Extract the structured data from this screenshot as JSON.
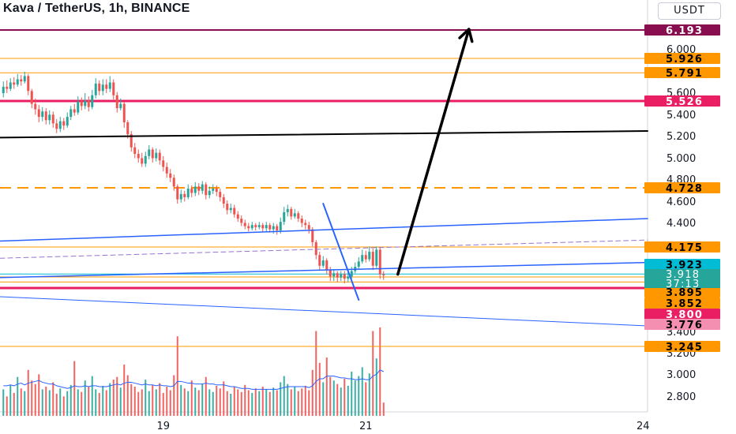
{
  "header": {
    "title": "Kava / TetherUS, 1h, BINANCE",
    "currency": "USDT"
  },
  "colors": {
    "up": "#26a69a",
    "down": "#ef5350",
    "volume_ma": "#2962ff",
    "orange": "#ff9800",
    "red": "#e91e63",
    "maroon": "#880e4f",
    "blue": "#2962ff",
    "black": "#000000",
    "cyan": "#00bcd4",
    "teal": "#26a69a",
    "pink": "#f48fb1"
  },
  "chart_data": {
    "type": "candlestick",
    "y_axis_ticks": [
      "6.000",
      "5.600",
      "5.400",
      "5.200",
      "5.000",
      "4.800",
      "4.600",
      "4.400",
      "3.400",
      "3.200",
      "3.000",
      "2.800"
    ],
    "y_tick_values": [
      6.0,
      5.6,
      5.4,
      5.2,
      5.0,
      4.8,
      4.6,
      4.4,
      3.4,
      3.2,
      3.0,
      2.8
    ],
    "x_axis_ticks": [
      "19",
      "21",
      "24"
    ],
    "x_tick_bars": [
      45,
      102,
      180
    ],
    "y_scale": [
      {
        "price": 6.193,
        "py": 38
      },
      {
        "price": 5.526,
        "py": 128
      },
      {
        "price": 4.728,
        "py": 238
      },
      {
        "price": 4.175,
        "py": 313
      },
      {
        "price": 3.895,
        "py": 351
      },
      {
        "price": 3.8,
        "py": 365
      },
      {
        "price": 2.8,
        "py": 502
      }
    ],
    "candles": [
      [
        5.6,
        5.66,
        5.71,
        5.56
      ],
      [
        5.66,
        5.64,
        5.72,
        5.6
      ],
      [
        5.64,
        5.7,
        5.74,
        5.62
      ],
      [
        5.7,
        5.68,
        5.75,
        5.64
      ],
      [
        5.68,
        5.73,
        5.78,
        5.66
      ],
      [
        5.73,
        5.71,
        5.77,
        5.67
      ],
      [
        5.71,
        5.76,
        5.8,
        5.69
      ],
      [
        5.76,
        5.62,
        5.78,
        5.58
      ],
      [
        5.62,
        5.5,
        5.64,
        5.46
      ],
      [
        5.5,
        5.45,
        5.55,
        5.4
      ],
      [
        5.45,
        5.38,
        5.49,
        5.33
      ],
      [
        5.38,
        5.43,
        5.47,
        5.34
      ],
      [
        5.43,
        5.35,
        5.46,
        5.31
      ],
      [
        5.35,
        5.4,
        5.44,
        5.31
      ],
      [
        5.4,
        5.32,
        5.43,
        5.28
      ],
      [
        5.32,
        5.27,
        5.36,
        5.23
      ],
      [
        5.27,
        5.34,
        5.38,
        5.24
      ],
      [
        5.34,
        5.3,
        5.37,
        5.26
      ],
      [
        5.3,
        5.38,
        5.42,
        5.28
      ],
      [
        5.38,
        5.45,
        5.48,
        5.35
      ],
      [
        5.45,
        5.42,
        5.5,
        5.39
      ],
      [
        5.42,
        5.52,
        5.57,
        5.4
      ],
      [
        5.52,
        5.48,
        5.56,
        5.44
      ],
      [
        5.48,
        5.53,
        5.6,
        5.45
      ],
      [
        5.53,
        5.47,
        5.57,
        5.43
      ],
      [
        5.47,
        5.58,
        5.63,
        5.45
      ],
      [
        5.58,
        5.69,
        5.74,
        5.55
      ],
      [
        5.69,
        5.62,
        5.72,
        5.58
      ],
      [
        5.62,
        5.68,
        5.73,
        5.58
      ],
      [
        5.68,
        5.64,
        5.73,
        5.6
      ],
      [
        5.64,
        5.7,
        5.76,
        5.61
      ],
      [
        5.7,
        5.58,
        5.73,
        5.54
      ],
      [
        5.58,
        5.46,
        5.61,
        5.42
      ],
      [
        5.46,
        5.5,
        5.55,
        5.44
      ],
      [
        5.5,
        5.33,
        5.52,
        5.28
      ],
      [
        5.33,
        5.22,
        5.35,
        5.18
      ],
      [
        5.22,
        5.1,
        5.25,
        5.06
      ],
      [
        5.1,
        5.04,
        5.14,
        5.0
      ],
      [
        5.04,
        5.0,
        5.08,
        4.96
      ],
      [
        5.0,
        4.95,
        5.05,
        4.92
      ],
      [
        4.95,
        5.02,
        5.06,
        4.92
      ],
      [
        5.02,
        5.08,
        5.12,
        4.99
      ],
      [
        5.08,
        5.0,
        5.1,
        4.96
      ],
      [
        5.0,
        5.05,
        5.09,
        4.97
      ],
      [
        5.05,
        4.98,
        5.08,
        4.94
      ],
      [
        4.98,
        4.92,
        5.02,
        4.88
      ],
      [
        4.92,
        4.86,
        4.96,
        4.82
      ],
      [
        4.86,
        4.82,
        4.9,
        4.78
      ],
      [
        4.82,
        4.74,
        4.85,
        4.7
      ],
      [
        4.74,
        4.62,
        4.76,
        4.58
      ],
      [
        4.62,
        4.67,
        4.71,
        4.59
      ],
      [
        4.67,
        4.64,
        4.7,
        4.6
      ],
      [
        4.64,
        4.72,
        4.76,
        4.62
      ],
      [
        4.72,
        4.68,
        4.75,
        4.64
      ],
      [
        4.68,
        4.74,
        4.78,
        4.65
      ],
      [
        4.74,
        4.7,
        4.77,
        4.66
      ],
      [
        4.7,
        4.76,
        4.79,
        4.67
      ],
      [
        4.76,
        4.66,
        4.78,
        4.62
      ],
      [
        4.66,
        4.7,
        4.74,
        4.63
      ],
      [
        4.7,
        4.72,
        4.76,
        4.67
      ],
      [
        4.72,
        4.69,
        4.75,
        4.65
      ],
      [
        4.69,
        4.64,
        4.72,
        4.6
      ],
      [
        4.64,
        4.58,
        4.67,
        4.54
      ],
      [
        4.58,
        4.52,
        4.61,
        4.48
      ],
      [
        4.52,
        4.54,
        4.58,
        4.49
      ],
      [
        4.54,
        4.48,
        4.57,
        4.45
      ],
      [
        4.48,
        4.44,
        4.51,
        4.41
      ],
      [
        4.44,
        4.4,
        4.47,
        4.37
      ],
      [
        4.4,
        4.37,
        4.43,
        4.34
      ],
      [
        4.37,
        4.35,
        4.4,
        4.32
      ],
      [
        4.35,
        4.38,
        4.41,
        4.33
      ],
      [
        4.38,
        4.36,
        4.4,
        4.33
      ],
      [
        4.36,
        4.38,
        4.41,
        4.34
      ],
      [
        4.38,
        4.35,
        4.4,
        4.32
      ],
      [
        4.35,
        4.38,
        4.41,
        4.32
      ],
      [
        4.38,
        4.34,
        4.4,
        4.31
      ],
      [
        4.34,
        4.37,
        4.4,
        4.3
      ],
      [
        4.37,
        4.33,
        4.39,
        4.29
      ],
      [
        4.33,
        4.41,
        4.45,
        4.3
      ],
      [
        4.41,
        4.5,
        4.55,
        4.38
      ],
      [
        4.5,
        4.53,
        4.57,
        4.46
      ],
      [
        4.53,
        4.46,
        4.55,
        4.43
      ],
      [
        4.46,
        4.49,
        4.53,
        4.44
      ],
      [
        4.49,
        4.44,
        4.51,
        4.41
      ],
      [
        4.44,
        4.4,
        4.47,
        4.36
      ],
      [
        4.4,
        4.38,
        4.43,
        4.34
      ],
      [
        4.38,
        4.34,
        4.41,
        4.3
      ],
      [
        4.34,
        4.22,
        4.36,
        4.18
      ],
      [
        4.22,
        4.1,
        4.24,
        4.06
      ],
      [
        4.1,
        4.0,
        4.13,
        3.96
      ],
      [
        4.0,
        4.05,
        4.09,
        3.98
      ],
      [
        4.05,
        3.96,
        4.07,
        3.92
      ],
      [
        3.96,
        3.9,
        3.99,
        3.86
      ],
      [
        3.9,
        3.93,
        3.96,
        3.86
      ],
      [
        3.93,
        3.89,
        3.95,
        3.85
      ],
      [
        3.89,
        3.92,
        3.95,
        3.86
      ],
      [
        3.92,
        3.88,
        3.95,
        3.84
      ],
      [
        3.88,
        3.9,
        3.94,
        3.85
      ],
      [
        3.9,
        3.95,
        3.99,
        3.88
      ],
      [
        3.95,
        3.99,
        4.03,
        3.93
      ],
      [
        3.99,
        4.04,
        4.08,
        3.97
      ],
      [
        4.04,
        4.1,
        4.15,
        4.02
      ],
      [
        4.1,
        4.06,
        4.14,
        4.03
      ],
      [
        4.06,
        4.13,
        4.18,
        4.04
      ],
      [
        4.13,
        4.0,
        4.16,
        3.96
      ],
      [
        4.0,
        4.15,
        4.18,
        3.98
      ],
      [
        4.15,
        3.92,
        4.17,
        3.88
      ],
      [
        3.92,
        3.91,
        3.95,
        3.87
      ]
    ],
    "volumes": [
      0.3,
      0.22,
      0.35,
      0.26,
      0.44,
      0.31,
      0.28,
      0.52,
      0.4,
      0.36,
      0.47,
      0.3,
      0.33,
      0.29,
      0.38,
      0.25,
      0.31,
      0.22,
      0.28,
      0.35,
      0.62,
      0.3,
      0.27,
      0.4,
      0.33,
      0.45,
      0.3,
      0.26,
      0.34,
      0.29,
      0.37,
      0.41,
      0.44,
      0.32,
      0.58,
      0.46,
      0.36,
      0.33,
      0.27,
      0.3,
      0.41,
      0.28,
      0.35,
      0.3,
      0.37,
      0.26,
      0.33,
      0.29,
      0.46,
      0.9,
      0.35,
      0.31,
      0.28,
      0.4,
      0.32,
      0.29,
      0.36,
      0.44,
      0.3,
      0.27,
      0.34,
      0.31,
      0.39,
      0.28,
      0.25,
      0.33,
      0.3,
      0.27,
      0.35,
      0.29,
      0.26,
      0.31,
      0.28,
      0.33,
      0.3,
      0.27,
      0.32,
      0.29,
      0.38,
      0.45,
      0.36,
      0.3,
      0.33,
      0.28,
      0.31,
      0.34,
      0.29,
      0.52,
      0.96,
      0.6,
      0.38,
      0.66,
      0.44,
      0.4,
      0.36,
      0.32,
      0.42,
      0.34,
      0.5,
      0.4,
      0.45,
      0.55,
      0.38,
      0.48,
      0.96,
      0.65,
      1.0,
      0.15
    ],
    "volume_ma": [
      0.34,
      0.34,
      0.35,
      0.34,
      0.36,
      0.37,
      0.35,
      0.37,
      0.38,
      0.39,
      0.4,
      0.38,
      0.37,
      0.36,
      0.36,
      0.34,
      0.33,
      0.32,
      0.31,
      0.32,
      0.34,
      0.33,
      0.33,
      0.34,
      0.33,
      0.34,
      0.34,
      0.33,
      0.33,
      0.33,
      0.34,
      0.35,
      0.36,
      0.35,
      0.37,
      0.38,
      0.38,
      0.37,
      0.36,
      0.35,
      0.36,
      0.35,
      0.35,
      0.34,
      0.35,
      0.34,
      0.34,
      0.33,
      0.34,
      0.39,
      0.39,
      0.38,
      0.37,
      0.37,
      0.36,
      0.36,
      0.36,
      0.37,
      0.36,
      0.36,
      0.35,
      0.35,
      0.35,
      0.34,
      0.33,
      0.33,
      0.32,
      0.31,
      0.31,
      0.31,
      0.3,
      0.3,
      0.3,
      0.3,
      0.3,
      0.3,
      0.3,
      0.3,
      0.31,
      0.32,
      0.33,
      0.33,
      0.33,
      0.33,
      0.33,
      0.33,
      0.32,
      0.34,
      0.39,
      0.42,
      0.42,
      0.45,
      0.45,
      0.45,
      0.44,
      0.43,
      0.43,
      0.42,
      0.42,
      0.41,
      0.41,
      0.42,
      0.41,
      0.41,
      0.45,
      0.47,
      0.52,
      0.5
    ],
    "price_lines": [
      {
        "price": 6.193,
        "label": "6.193",
        "line_color": "#880e4f",
        "label_bg": "#880e4f",
        "label_color": "#ffffff",
        "style": "solid",
        "width": 2
      },
      {
        "price": 5.926,
        "label": "5.926",
        "line_color": "#ff9800",
        "label_bg": "#ff9800",
        "label_color": "#000000",
        "style": "solid",
        "width": 1
      },
      {
        "price": 5.791,
        "label": "5.791",
        "line_color": "#ff9800",
        "label_bg": "#ff9800",
        "label_color": "#000000",
        "style": "solid",
        "width": 1
      },
      {
        "price": 5.526,
        "label": "5.526",
        "line_color": "#e91e63",
        "label_bg": "#e91e63",
        "label_color": "#ffffff",
        "style": "solid",
        "width": 3
      },
      {
        "price": 4.728,
        "label": "4.728",
        "line_color": "#ff9800",
        "label_bg": "#ff9800",
        "label_color": "#000000",
        "style": "dashed",
        "width": 2
      },
      {
        "price": 4.175,
        "label": "4.175",
        "line_color": "#ff9800",
        "label_bg": "#ff9800",
        "label_color": "#000000",
        "style": "solid",
        "width": 1
      },
      {
        "price": 3.923,
        "label": "3.923",
        "line_color": "#00bcd4",
        "label_bg": "#00bcd4",
        "label_color": "#000000",
        "style": "solid",
        "width": 1
      },
      {
        "price": 3.895,
        "label": "3.895",
        "line_color": "#ff9800",
        "label_bg": "#ff9800",
        "label_color": "#000000",
        "style": "solid",
        "width": 1
      },
      {
        "price": 3.852,
        "label": "3.852",
        "line_color": "#ff9800",
        "label_bg": "#ff9800",
        "label_color": "#000000",
        "style": "solid",
        "width": 1
      },
      {
        "price": 3.8,
        "label": "3.800",
        "line_color": "#e91e63",
        "label_bg": "#e91e63",
        "label_color": "#ffffff",
        "style": "solid",
        "width": 3
      }
    ],
    "current_price": {
      "price": "3.918",
      "countdown": "37:13",
      "bg": "#26a69a",
      "color": "#ffffff"
    },
    "extra_labels": [
      {
        "text": "3.776",
        "bg": "#f48fb1",
        "color": "#000000"
      },
      {
        "text": "3.245",
        "bg": "#ff9800",
        "color": "#000000"
      }
    ],
    "trend_lines": [
      {
        "name": "black-horizontal-line",
        "color": "#000000",
        "from": [
          0,
          5.19
        ],
        "to": [
          183,
          5.25
        ],
        "width": 2,
        "style": "solid"
      },
      {
        "name": "blue-upper-trendline",
        "color": "#2962ff",
        "from": [
          0,
          4.23
        ],
        "to": [
          183,
          4.44
        ],
        "width": 1.5,
        "style": "solid"
      },
      {
        "name": "purple-dashed-trendline",
        "color": "#9575cd",
        "from": [
          0,
          4.07
        ],
        "to": [
          183,
          4.24
        ],
        "width": 1,
        "style": "dashed"
      },
      {
        "name": "blue-lower-trendline",
        "color": "#2962ff",
        "from": [
          0,
          3.89
        ],
        "to": [
          183,
          4.03
        ],
        "width": 1.5,
        "style": "solid"
      },
      {
        "name": "blue-descending-line",
        "color": "#2962ff",
        "from": [
          90,
          4.58
        ],
        "to": [
          100,
          3.69
        ],
        "width": 2,
        "style": "solid"
      },
      {
        "name": "blue-falling-trendline",
        "color": "#2962ff",
        "from": [
          0,
          3.72
        ],
        "to": [
          183,
          3.45
        ],
        "width": 1,
        "style": "solid"
      },
      {
        "name": "black-projection-arrow",
        "color": "#000000",
        "from": [
          111,
          3.92
        ],
        "to": [
          131,
          6.2
        ],
        "width": 3.5,
        "style": "solid",
        "arrow": true
      }
    ],
    "bars_visible": 108,
    "xlabel": "",
    "ylabel": "",
    "grid": false,
    "legend": "none"
  }
}
